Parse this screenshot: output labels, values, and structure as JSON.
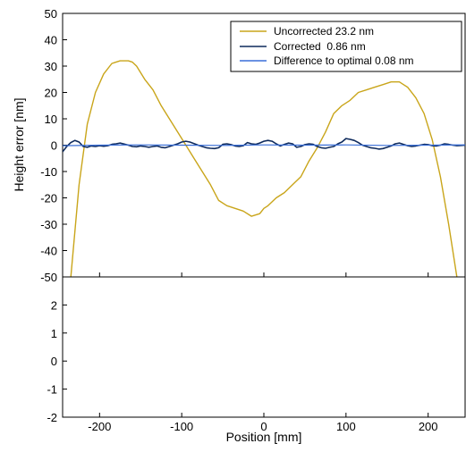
{
  "chart_data": [
    {
      "type": "line",
      "xlabel": "",
      "ylabel": "Height error [nm]",
      "xlim": [
        -245,
        245
      ],
      "ylim": [
        -50,
        50
      ],
      "yticks": [
        -50,
        -40,
        -30,
        -20,
        -10,
        0,
        10,
        20,
        30,
        40,
        50
      ],
      "xticks": [
        -200,
        -100,
        0,
        100,
        200
      ],
      "xtick_labels_shown": false,
      "grid": false,
      "legend_position": "top-right",
      "series": [
        {
          "name": "Uncorrected 23.2 nm",
          "color": "#c9a51a",
          "x": [
            -235,
            -225,
            -215,
            -205,
            -195,
            -185,
            -175,
            -165,
            -160,
            -155,
            -145,
            -135,
            -125,
            -115,
            -105,
            -95,
            -85,
            -75,
            -65,
            -55,
            -45,
            -35,
            -25,
            -15,
            -5,
            0,
            5,
            15,
            25,
            35,
            45,
            55,
            65,
            75,
            85,
            95,
            105,
            115,
            125,
            135,
            145,
            155,
            165,
            170,
            175,
            185,
            195,
            205,
            215,
            225,
            235
          ],
          "values": [
            -50,
            -15,
            8,
            20,
            27,
            31,
            32,
            32,
            31.5,
            30,
            25,
            21,
            15,
            10,
            5,
            0,
            -5,
            -10,
            -15,
            -21,
            -23,
            -24,
            -25,
            -27,
            -26,
            -24,
            -23,
            -20,
            -18,
            -15,
            -12,
            -6,
            -1,
            5,
            12,
            15,
            17,
            20,
            21,
            22,
            23,
            24,
            24,
            23,
            22,
            18,
            12,
            2,
            -12,
            -30,
            -50
          ]
        },
        {
          "name": "Corrected  0.86 nm",
          "color": "#0e2a5c",
          "x": [
            -245,
            -240,
            -235,
            -230,
            -225,
            -220,
            -215,
            -210,
            -205,
            -200,
            -195,
            -190,
            -185,
            -180,
            -175,
            -170,
            -165,
            -160,
            -155,
            -150,
            -145,
            -140,
            -135,
            -130,
            -125,
            -120,
            -115,
            -110,
            -105,
            -100,
            -95,
            -90,
            -85,
            -80,
            -75,
            -70,
            -65,
            -60,
            -55,
            -50,
            -45,
            -40,
            -35,
            -30,
            -25,
            -20,
            -15,
            -10,
            -5,
            0,
            5,
            10,
            15,
            20,
            25,
            30,
            35,
            40,
            45,
            50,
            55,
            60,
            65,
            70,
            75,
            80,
            85,
            90,
            95,
            100,
            105,
            110,
            115,
            120,
            125,
            130,
            135,
            140,
            145,
            150,
            155,
            160,
            165,
            170,
            175,
            180,
            185,
            190,
            195,
            200,
            205,
            210,
            215,
            220,
            225,
            230,
            235,
            240,
            245
          ],
          "values": [
            -2.5,
            -0.5,
            1,
            1.8,
            1.2,
            -0.5,
            -0.8,
            -0.3,
            -0.5,
            -0.2,
            -0.4,
            -0.2,
            0.3,
            0.5,
            0.8,
            0.4,
            0,
            -0.5,
            -0.6,
            -0.3,
            -0.5,
            -0.8,
            -0.5,
            -0.3,
            -0.8,
            -1,
            -0.5,
            0,
            0.5,
            1.2,
            1.5,
            1.2,
            0.6,
            0,
            -0.5,
            -1,
            -1.2,
            -1.3,
            -1,
            0.3,
            0.5,
            0.2,
            -0.3,
            -0.5,
            -0.2,
            1,
            0.5,
            0.3,
            0.8,
            1.5,
            1.8,
            1.5,
            0.5,
            -0.3,
            0.3,
            0.8,
            0.5,
            -0.8,
            -0.5,
            0.2,
            0.5,
            0.3,
            -0.5,
            -1,
            -1.2,
            -0.8,
            -0.5,
            0.5,
            1.2,
            2.5,
            2.2,
            1.8,
            1,
            0,
            -0.5,
            -1,
            -1.2,
            -1.5,
            -1.3,
            -0.8,
            -0.3,
            0.5,
            0.8,
            0.3,
            -0.2,
            -0.5,
            -0.3,
            0,
            0.3,
            0.2,
            -0.2,
            -0.3,
            0,
            0.5,
            0.3,
            0,
            -0.2,
            -0.1,
            0
          ]
        },
        {
          "name": "Difference to optimal 0.08 nm",
          "color": "#3a6fd8",
          "x": [
            -245,
            -200,
            -150,
            -100,
            -50,
            0,
            50,
            100,
            150,
            200,
            245
          ],
          "values": [
            -0.2,
            0,
            0.1,
            0,
            -0.1,
            0.1,
            0,
            0.1,
            -0.1,
            0,
            0.1
          ]
        }
      ]
    },
    {
      "type": "line",
      "xlabel": "Position [mm]",
      "ylabel": "",
      "xlim": [
        -245,
        245
      ],
      "ylim": [
        -2,
        3
      ],
      "yticks": [
        -2,
        -1,
        0,
        1,
        2
      ],
      "xticks": [
        -200,
        -100,
        0,
        100,
        200
      ],
      "grid": false,
      "series": []
    }
  ]
}
